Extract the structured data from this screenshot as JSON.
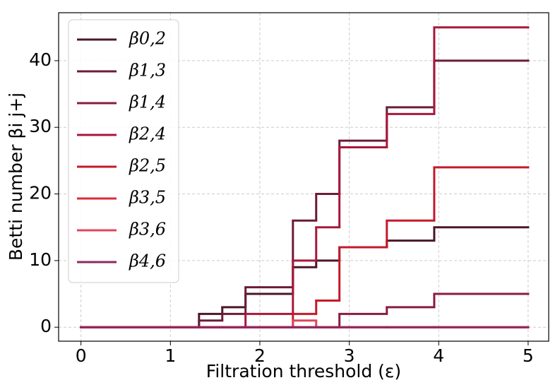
{
  "chart_data": {
    "type": "step",
    "xlabel": "Filtration threshold (ε)",
    "ylabel": "Betti number βi j+j",
    "x": [
      0,
      1.32,
      1.58,
      1.84,
      2.37,
      2.63,
      2.89,
      3.42,
      3.95,
      5
    ],
    "series": [
      {
        "name": "β0,2",
        "color": "#4a1828",
        "values": [
          0,
          2,
          3,
          5,
          9,
          10,
          12,
          13,
          15,
          15
        ]
      },
      {
        "name": "β1,3",
        "color": "#6b1c38",
        "values": [
          0,
          1,
          2,
          6,
          16,
          20,
          28,
          33,
          40,
          40
        ]
      },
      {
        "name": "β1,4",
        "color": "#8a1c40",
        "values": [
          0,
          0,
          0,
          0,
          0,
          0,
          2,
          3,
          5,
          5
        ]
      },
      {
        "name": "β2,4",
        "color": "#a8183a",
        "values": [
          0,
          0,
          0,
          2,
          10,
          15,
          27,
          32,
          45,
          45
        ]
      },
      {
        "name": "β2,5",
        "color": "#c41a2c",
        "values": [
          0,
          0,
          0,
          0,
          2,
          4,
          12,
          16,
          24,
          24
        ]
      },
      {
        "name": "β3,5",
        "color": "#dd2a38",
        "values": [
          0,
          0,
          0,
          0,
          0,
          0,
          0,
          0,
          0,
          0
        ]
      },
      {
        "name": "β3,6",
        "color": "#e0465e",
        "values": [
          0,
          0,
          0,
          0,
          1,
          0,
          0,
          0,
          0,
          0
        ]
      },
      {
        "name": "β4,6",
        "color": "#8e2860",
        "values": [
          0,
          0,
          0,
          0,
          0,
          0,
          0,
          0,
          0,
          0
        ]
      }
    ],
    "xlim": [
      -0.25,
      5.23
    ],
    "ylim": [
      -2.1,
      47.2
    ],
    "xticks": [
      0,
      1,
      2,
      3,
      4,
      5
    ],
    "yticks": [
      0,
      10,
      20,
      30,
      40
    ],
    "grid": true,
    "legend": "upper left"
  }
}
